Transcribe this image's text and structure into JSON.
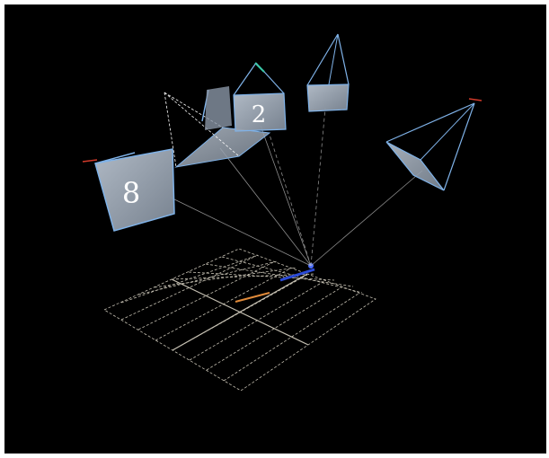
{
  "scene": {
    "camera_labels": [
      "8",
      "2"
    ],
    "colors": {
      "background": "#000000",
      "frame": "#ffffff",
      "grid": "#e8e2d2",
      "frustum_edge": "#7fb2e8",
      "frustum_face": "#9aa7b8",
      "ray": "#c8c8c8",
      "accent_red": "#d23a2a",
      "accent_blue": "#2a4ad8",
      "accent_orange": "#e08a3a"
    }
  }
}
